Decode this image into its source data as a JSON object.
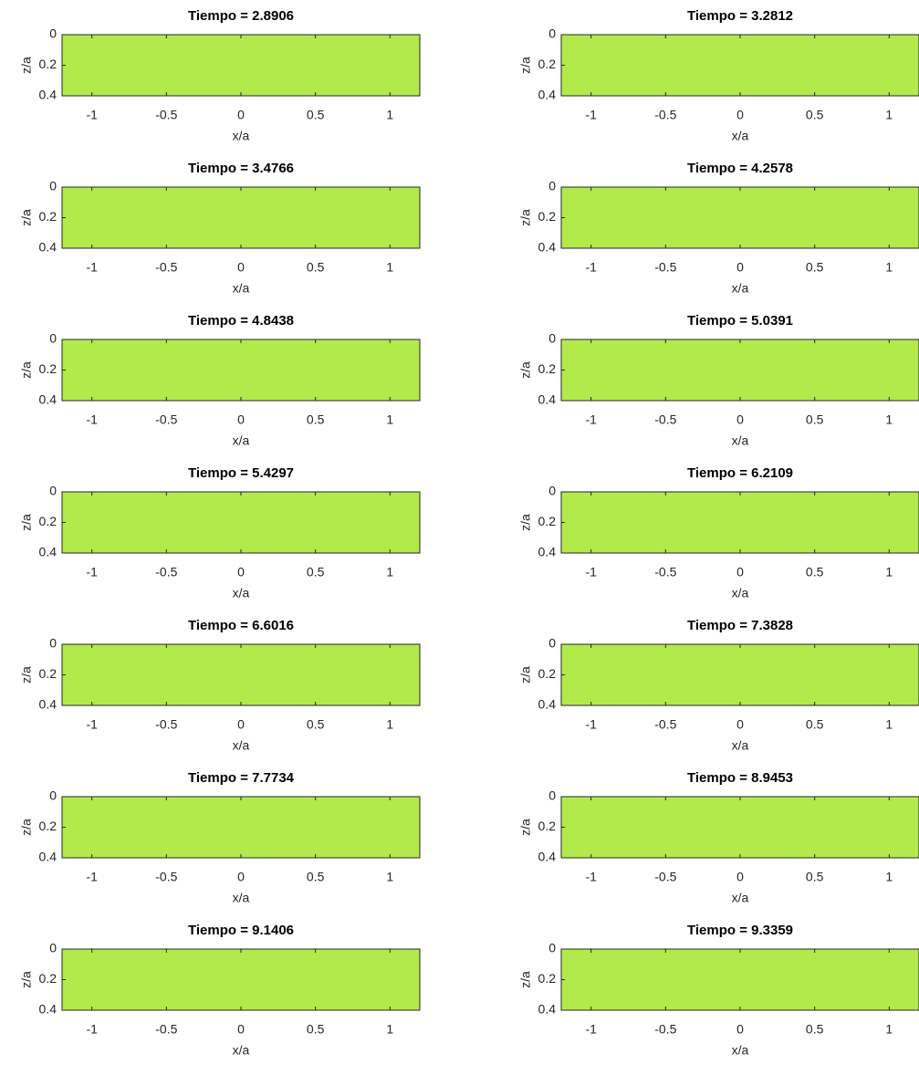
{
  "chart_data": [
    {
      "type": "heatmap",
      "title": "Tiempo = 2.8906",
      "xlabel": "x/a",
      "ylabel": "z/a",
      "xlim": [
        -1.2,
        1.2
      ],
      "ylim": [
        0,
        0.4
      ],
      "y_reversed": true,
      "xticks": [
        -1,
        -0.5,
        0,
        0.5,
        1
      ],
      "yticks": [
        0,
        0.2,
        0.4
      ]
    },
    {
      "type": "heatmap",
      "title": "Tiempo = 3.2812",
      "xlabel": "x/a",
      "ylabel": "z/a",
      "xlim": [
        -1.2,
        1.2
      ],
      "ylim": [
        0,
        0.4
      ],
      "y_reversed": true,
      "xticks": [
        -1,
        -0.5,
        0,
        0.5,
        1
      ],
      "yticks": [
        0,
        0.2,
        0.4
      ]
    },
    {
      "type": "heatmap",
      "title": "Tiempo = 3.4766",
      "xlabel": "x/a",
      "ylabel": "z/a",
      "xlim": [
        -1.2,
        1.2
      ],
      "ylim": [
        0,
        0.4
      ],
      "y_reversed": true,
      "xticks": [
        -1,
        -0.5,
        0,
        0.5,
        1
      ],
      "yticks": [
        0,
        0.2,
        0.4
      ]
    },
    {
      "type": "heatmap",
      "title": "Tiempo = 4.2578",
      "xlabel": "x/a",
      "ylabel": "z/a",
      "xlim": [
        -1.2,
        1.2
      ],
      "ylim": [
        0,
        0.4
      ],
      "y_reversed": true,
      "xticks": [
        -1,
        -0.5,
        0,
        0.5,
        1
      ],
      "yticks": [
        0,
        0.2,
        0.4
      ]
    },
    {
      "type": "heatmap",
      "title": "Tiempo = 4.8438",
      "xlabel": "x/a",
      "ylabel": "z/a",
      "xlim": [
        -1.2,
        1.2
      ],
      "ylim": [
        0,
        0.4
      ],
      "y_reversed": true,
      "xticks": [
        -1,
        -0.5,
        0,
        0.5,
        1
      ],
      "yticks": [
        0,
        0.2,
        0.4
      ]
    },
    {
      "type": "heatmap",
      "title": "Tiempo = 5.0391",
      "xlabel": "x/a",
      "ylabel": "z/a",
      "xlim": [
        -1.2,
        1.2
      ],
      "ylim": [
        0,
        0.4
      ],
      "y_reversed": true,
      "xticks": [
        -1,
        -0.5,
        0,
        0.5,
        1
      ],
      "yticks": [
        0,
        0.2,
        0.4
      ]
    },
    {
      "type": "heatmap",
      "title": "Tiempo = 5.4297",
      "xlabel": "x/a",
      "ylabel": "z/a",
      "xlim": [
        -1.2,
        1.2
      ],
      "ylim": [
        0,
        0.4
      ],
      "y_reversed": true,
      "xticks": [
        -1,
        -0.5,
        0,
        0.5,
        1
      ],
      "yticks": [
        0,
        0.2,
        0.4
      ]
    },
    {
      "type": "heatmap",
      "title": "Tiempo = 6.2109",
      "xlabel": "x/a",
      "ylabel": "z/a",
      "xlim": [
        -1.2,
        1.2
      ],
      "ylim": [
        0,
        0.4
      ],
      "y_reversed": true,
      "xticks": [
        -1,
        -0.5,
        0,
        0.5,
        1
      ],
      "yticks": [
        0,
        0.2,
        0.4
      ]
    },
    {
      "type": "heatmap",
      "title": "Tiempo = 6.6016",
      "xlabel": "x/a",
      "ylabel": "z/a",
      "xlim": [
        -1.2,
        1.2
      ],
      "ylim": [
        0,
        0.4
      ],
      "y_reversed": true,
      "xticks": [
        -1,
        -0.5,
        0,
        0.5,
        1
      ],
      "yticks": [
        0,
        0.2,
        0.4
      ]
    },
    {
      "type": "heatmap",
      "title": "Tiempo = 7.3828",
      "xlabel": "x/a",
      "ylabel": "z/a",
      "xlim": [
        -1.2,
        1.2
      ],
      "ylim": [
        0,
        0.4
      ],
      "y_reversed": true,
      "xticks": [
        -1,
        -0.5,
        0,
        0.5,
        1
      ],
      "yticks": [
        0,
        0.2,
        0.4
      ]
    },
    {
      "type": "heatmap",
      "title": "Tiempo = 7.7734",
      "xlabel": "x/a",
      "ylabel": "z/a",
      "xlim": [
        -1.2,
        1.2
      ],
      "ylim": [
        0,
        0.4
      ],
      "y_reversed": true,
      "xticks": [
        -1,
        -0.5,
        0,
        0.5,
        1
      ],
      "yticks": [
        0,
        0.2,
        0.4
      ]
    },
    {
      "type": "heatmap",
      "title": "Tiempo = 8.9453",
      "xlabel": "x/a",
      "ylabel": "z/a",
      "xlim": [
        -1.2,
        1.2
      ],
      "ylim": [
        0,
        0.4
      ],
      "y_reversed": true,
      "xticks": [
        -1,
        -0.5,
        0,
        0.5,
        1
      ],
      "yticks": [
        0,
        0.2,
        0.4
      ]
    },
    {
      "type": "heatmap",
      "title": "Tiempo = 9.1406",
      "xlabel": "x/a",
      "ylabel": "z/a",
      "xlim": [
        -1.2,
        1.2
      ],
      "ylim": [
        0,
        0.4
      ],
      "y_reversed": true,
      "xticks": [
        -1,
        -0.5,
        0,
        0.5,
        1
      ],
      "yticks": [
        0,
        0.2,
        0.4
      ]
    },
    {
      "type": "heatmap",
      "title": "Tiempo = 9.3359",
      "xlabel": "x/a",
      "ylabel": "z/a",
      "xlim": [
        -1.2,
        1.2
      ],
      "ylim": [
        0,
        0.4
      ],
      "y_reversed": true,
      "xticks": [
        -1,
        -0.5,
        0,
        0.5,
        1
      ],
      "yticks": [
        0,
        0.2,
        0.4
      ]
    }
  ]
}
